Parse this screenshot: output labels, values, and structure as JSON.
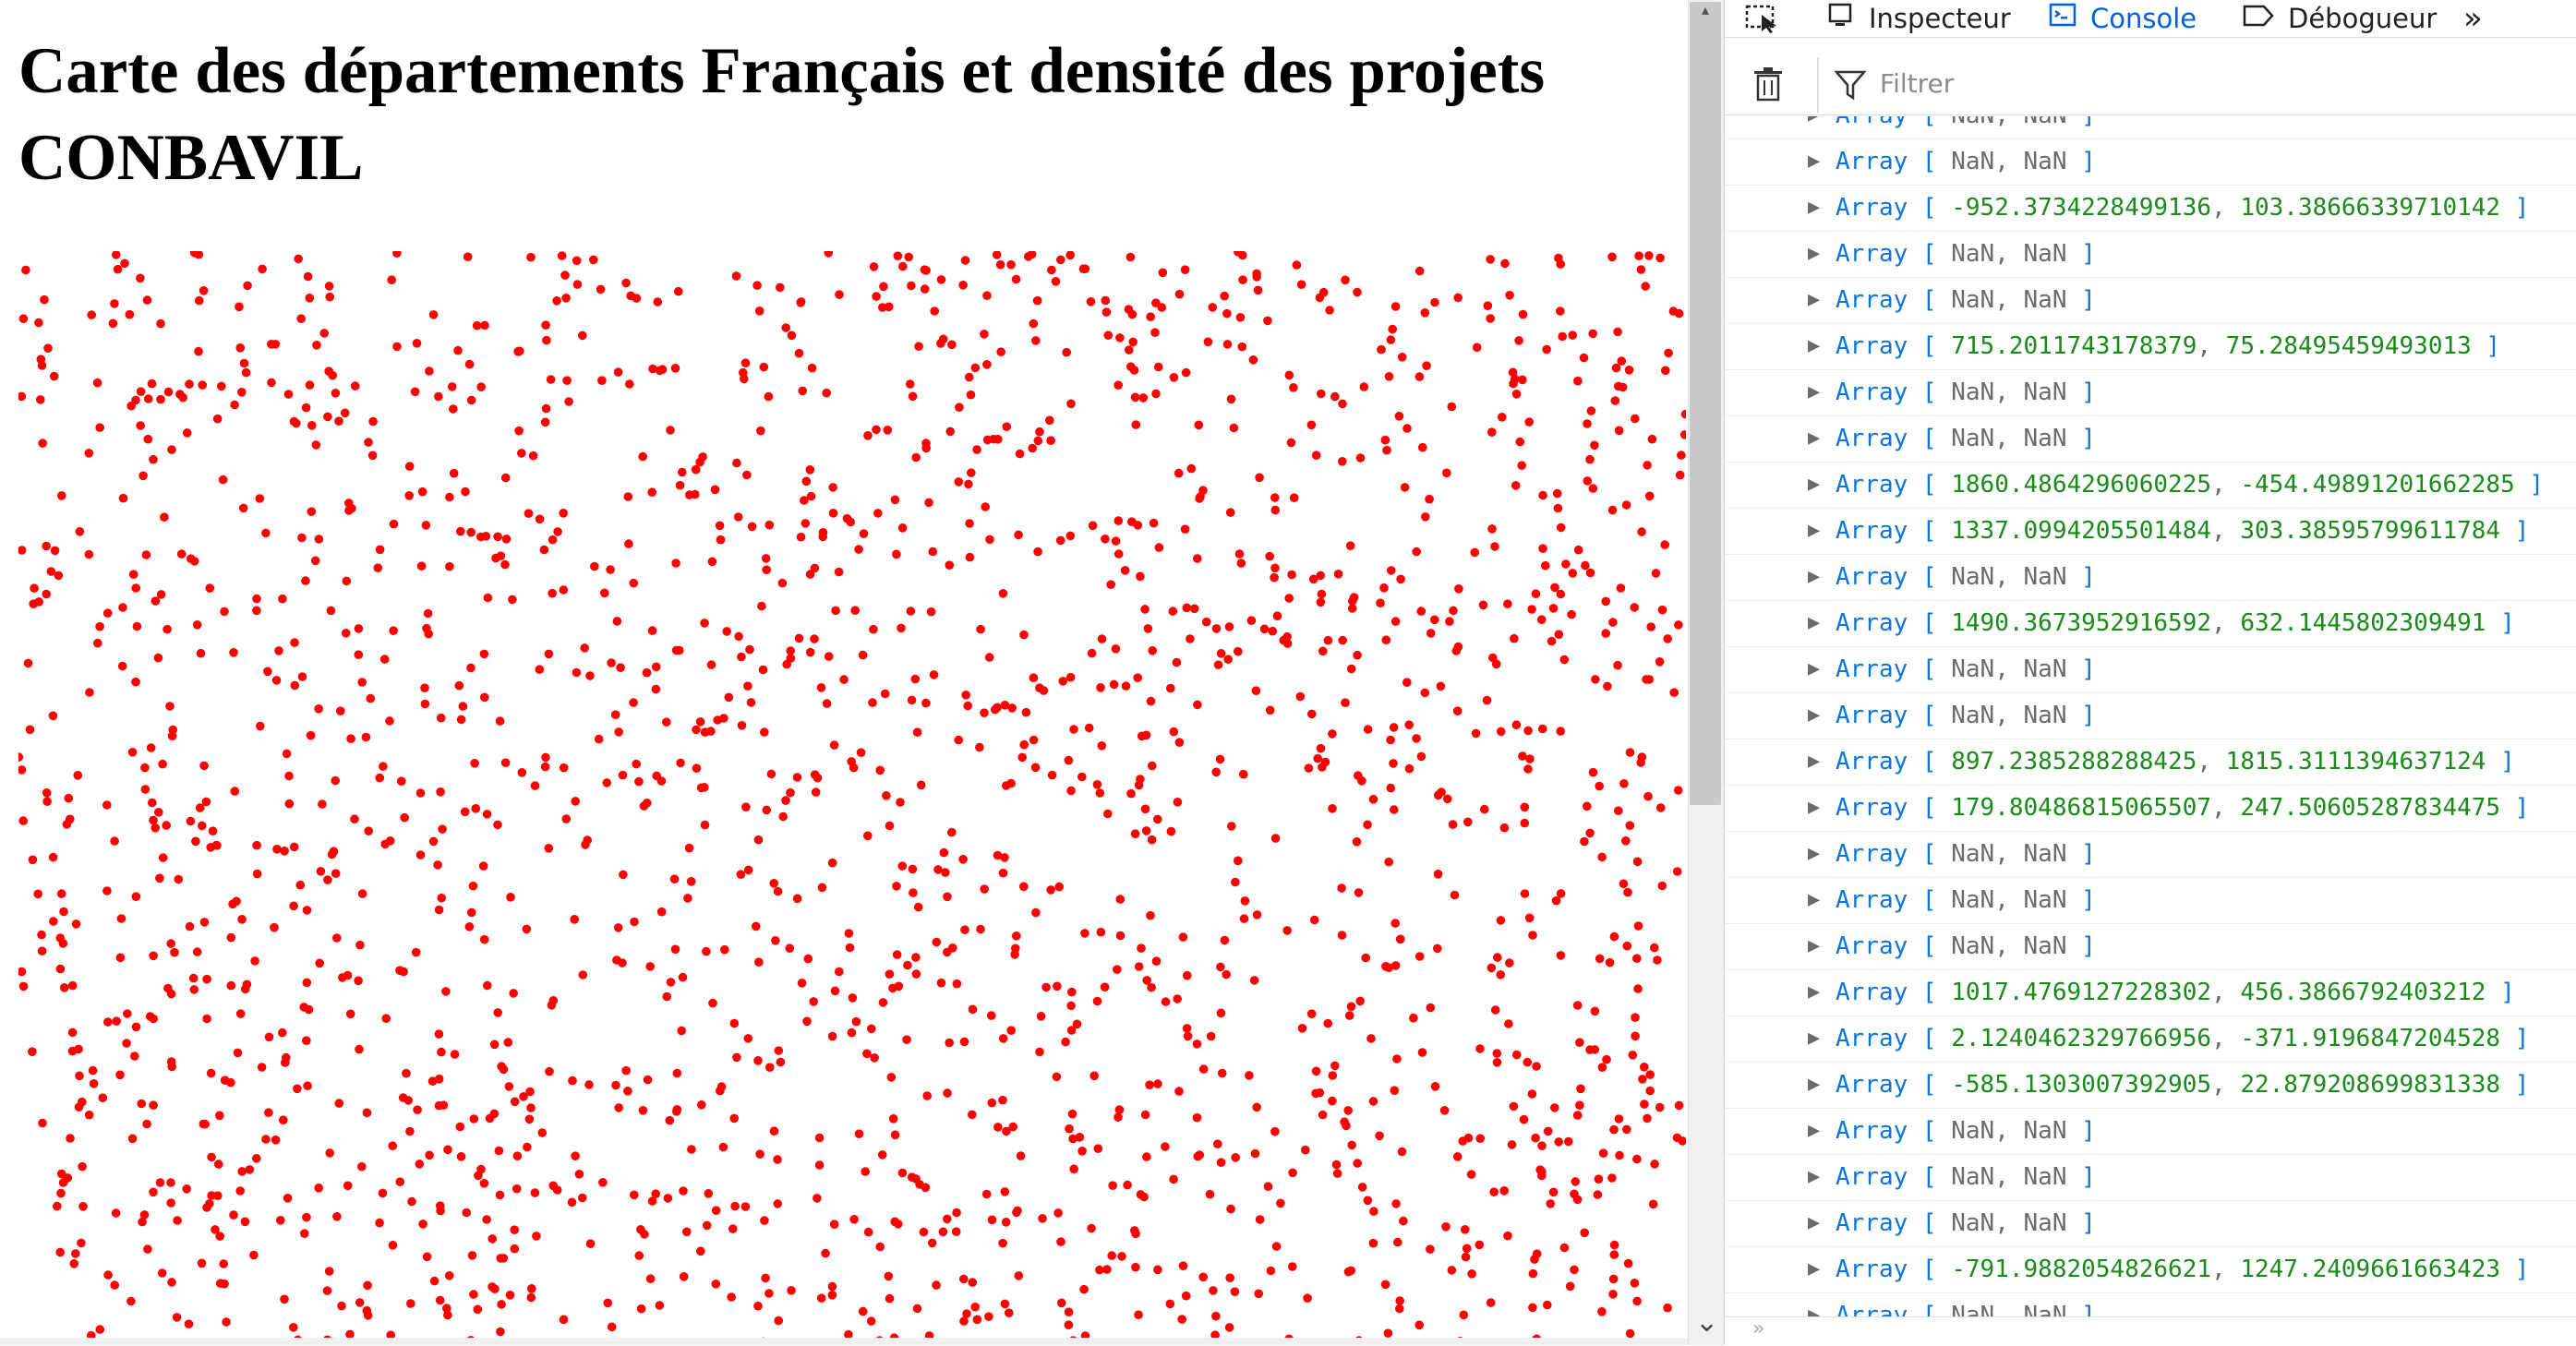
{
  "page": {
    "title": "Carte des départements Français et densité des projets CONBAVIL",
    "dot_color": "#ff0000"
  },
  "devtools": {
    "tabs": [
      {
        "label": "Inspecteur",
        "icon": "inspector-icon"
      },
      {
        "label": "Console",
        "icon": "console-icon",
        "active": true
      },
      {
        "label": "Débogueur",
        "icon": "debugger-icon"
      }
    ],
    "more_tabs_icon": "double-chevron-right-icon",
    "pick_element_icon": "pick-element-icon",
    "trash_icon": "trash-icon",
    "filter_icon": "filter-icon",
    "filter_placeholder": "Filtrer",
    "accent_color": "#0061e0",
    "number_color": "#1a8a1a",
    "keyword_color": "#0b74de",
    "console_rows": [
      {
        "label": "Array",
        "a": "NaN",
        "b": "NaN"
      },
      {
        "label": "Array",
        "a": "NaN",
        "b": "NaN"
      },
      {
        "label": "Array",
        "a": "-952.3734228499136",
        "b": "103.38666339710142"
      },
      {
        "label": "Array",
        "a": "NaN",
        "b": "NaN"
      },
      {
        "label": "Array",
        "a": "NaN",
        "b": "NaN"
      },
      {
        "label": "Array",
        "a": "715.2011743178379",
        "b": "75.28495459493013"
      },
      {
        "label": "Array",
        "a": "NaN",
        "b": "NaN"
      },
      {
        "label": "Array",
        "a": "NaN",
        "b": "NaN"
      },
      {
        "label": "Array",
        "a": "1860.4864296060225",
        "b": "-454.49891201662285"
      },
      {
        "label": "Array",
        "a": "1337.0994205501484",
        "b": "303.38595799611784"
      },
      {
        "label": "Array",
        "a": "NaN",
        "b": "NaN"
      },
      {
        "label": "Array",
        "a": "1490.3673952916592",
        "b": "632.1445802309491"
      },
      {
        "label": "Array",
        "a": "NaN",
        "b": "NaN"
      },
      {
        "label": "Array",
        "a": "NaN",
        "b": "NaN"
      },
      {
        "label": "Array",
        "a": "897.2385288288425",
        "b": "1815.3111394637124"
      },
      {
        "label": "Array",
        "a": "179.80486815065507",
        "b": "247.50605287834475"
      },
      {
        "label": "Array",
        "a": "NaN",
        "b": "NaN"
      },
      {
        "label": "Array",
        "a": "NaN",
        "b": "NaN"
      },
      {
        "label": "Array",
        "a": "NaN",
        "b": "NaN"
      },
      {
        "label": "Array",
        "a": "1017.4769127228302",
        "b": "456.3866792403212"
      },
      {
        "label": "Array",
        "a": "2.1240462329766956",
        "b": "-371.9196847204528"
      },
      {
        "label": "Array",
        "a": "-585.1303007392905",
        "b": "22.879208699831338"
      },
      {
        "label": "Array",
        "a": "NaN",
        "b": "NaN"
      },
      {
        "label": "Array",
        "a": "NaN",
        "b": "NaN"
      },
      {
        "label": "Array",
        "a": "NaN",
        "b": "NaN"
      },
      {
        "label": "Array",
        "a": "-791.9882054826621",
        "b": "1247.2409661663423"
      },
      {
        "label": "Array",
        "a": "NaN",
        "b": "NaN"
      }
    ]
  }
}
